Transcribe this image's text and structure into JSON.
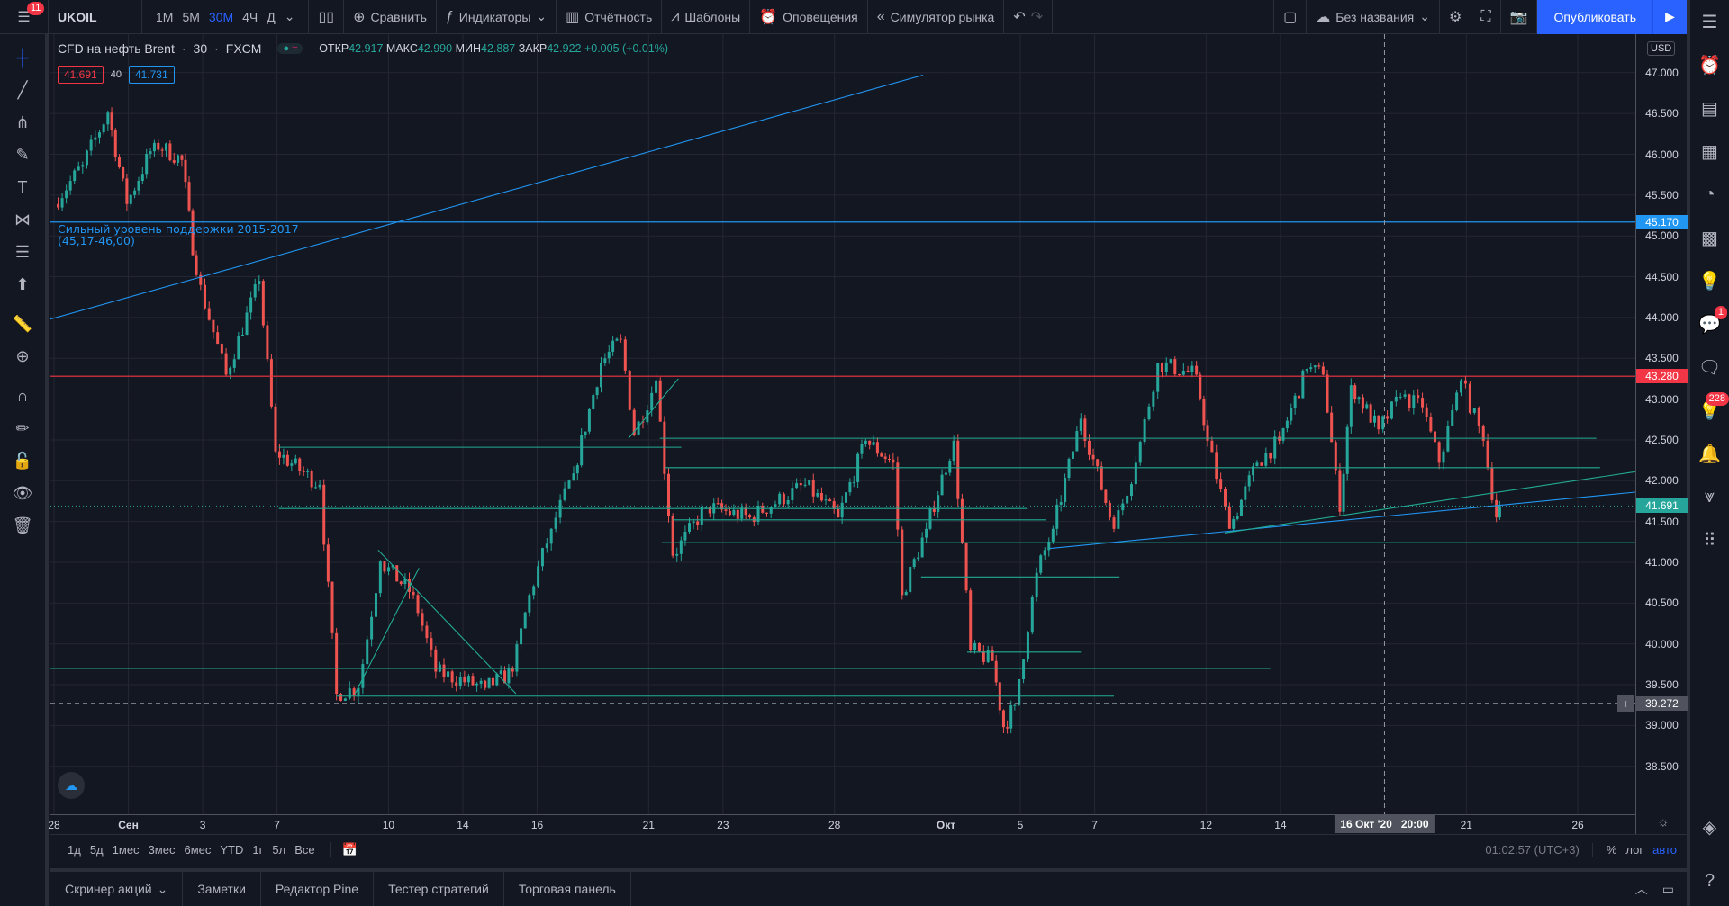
{
  "toolbar": {
    "menu_badge": "11",
    "symbol": "UKOIL",
    "timeframes": [
      "1М",
      "5М",
      "30М",
      "4Ч",
      "Д"
    ],
    "active_timeframe": "30М",
    "compare": "Сравнить",
    "indicators": "Индикаторы",
    "financials": "Отчётность",
    "templates": "Шаблоны",
    "alerts": "Оповещения",
    "replay": "Симулятор рынка",
    "layout_name": "Без названия",
    "publish": "Опубликовать"
  },
  "legend": {
    "title": "CFD на нефть Brent",
    "interval": "30",
    "exchange": "FXCM",
    "open_label": "ОТКР",
    "open": "42.917",
    "high_label": "МАКС",
    "high": "42.990",
    "low_label": "МИН",
    "low": "42.887",
    "close_label": "ЗАКР",
    "close": "42.922",
    "change": "+0.005 (+0.01%)",
    "bid": "41.691",
    "spread": "40",
    "ask": "41.731"
  },
  "currency": "USD",
  "annotation": {
    "line1": "Сильный уровень поддержки 2015-2017",
    "line2": "(45,17-46,00)"
  },
  "colors": {
    "bg": "#131722",
    "grid": "#242733",
    "up": "#26a69a",
    "down": "#ef5350",
    "blue": "#2196f3",
    "red": "#f23645",
    "teal": "#22ab94",
    "accent": "#2962ff"
  },
  "chart_data": {
    "type": "candlestick",
    "x_unit": "trading days from 28 Aug 2020",
    "xlim": [
      -0.1,
      42.55
    ],
    "ylim": [
      38.2,
      47.4
    ],
    "y_ticks": [
      "47.000",
      "46.500",
      "46.000",
      "45.500",
      "45.000",
      "44.500",
      "44.000",
      "43.500",
      "43.000",
      "42.500",
      "42.000",
      "41.500",
      "41.000",
      "40.500",
      "40.000",
      "39.500",
      "39.000",
      "38.500"
    ],
    "x_ticks": [
      {
        "d": 0,
        "label": "28"
      },
      {
        "d": 2,
        "label": "Сен"
      },
      {
        "d": 4,
        "label": "3"
      },
      {
        "d": 6,
        "label": "7"
      },
      {
        "d": 9,
        "label": "10"
      },
      {
        "d": 11,
        "label": "14"
      },
      {
        "d": 13,
        "label": "16"
      },
      {
        "d": 16,
        "label": "21"
      },
      {
        "d": 18,
        "label": "23"
      },
      {
        "d": 21,
        "label": "28"
      },
      {
        "d": 24,
        "label": "Окт"
      },
      {
        "d": 26,
        "label": "5"
      },
      {
        "d": 28,
        "label": "7"
      },
      {
        "d": 31,
        "label": "12"
      },
      {
        "d": 33,
        "label": "14"
      },
      {
        "d": 38,
        "label": "21"
      },
      {
        "d": 41,
        "label": "26"
      }
    ],
    "crosshair": {
      "d": 35.8,
      "date_label": "16 Окт '20",
      "time_label": "20:00",
      "price": "39.272"
    },
    "price_path": [
      [
        0,
        45.39
      ],
      [
        0.77,
        45.87
      ],
      [
        1.45,
        46.51
      ],
      [
        1.96,
        45.39
      ],
      [
        2.7,
        46.14
      ],
      [
        3.44,
        45.93
      ],
      [
        3.83,
        44.52
      ],
      [
        4.63,
        43.3
      ],
      [
        5.52,
        44.45
      ],
      [
        5.96,
        42.36
      ],
      [
        7.15,
        41.95
      ],
      [
        7.6,
        39.39
      ],
      [
        8.19,
        39.46
      ],
      [
        8.78,
        41.01
      ],
      [
        9.67,
        40.6
      ],
      [
        10.27,
        39.66
      ],
      [
        11.6,
        39.46
      ],
      [
        12.34,
        39.66
      ],
      [
        12.79,
        40.6
      ],
      [
        13.38,
        41.41
      ],
      [
        13.98,
        42.09
      ],
      [
        14.72,
        43.44
      ],
      [
        15.25,
        43.73
      ],
      [
        15.61,
        42.56
      ],
      [
        16.2,
        43.23
      ],
      [
        16.65,
        41.08
      ],
      [
        17.54,
        41.68
      ],
      [
        18.72,
        41.55
      ],
      [
        20.21,
        41.95
      ],
      [
        21.1,
        41.55
      ],
      [
        21.84,
        42.49
      ],
      [
        22.58,
        42.22
      ],
      [
        22.82,
        40.6
      ],
      [
        23.47,
        41.41
      ],
      [
        24.21,
        42.49
      ],
      [
        24.66,
        39.93
      ],
      [
        25.25,
        39.79
      ],
      [
        25.55,
        38.98
      ],
      [
        25.85,
        39.25
      ],
      [
        26.44,
        40.87
      ],
      [
        26.88,
        41.41
      ],
      [
        27.63,
        42.76
      ],
      [
        28.52,
        41.41
      ],
      [
        29.11,
        42.22
      ],
      [
        29.7,
        43.44
      ],
      [
        30.74,
        43.3
      ],
      [
        31.04,
        42.49
      ],
      [
        31.63,
        41.41
      ],
      [
        32.37,
        42.22
      ],
      [
        32.97,
        42.49
      ],
      [
        33.71,
        43.37
      ],
      [
        34.15,
        43.3
      ],
      [
        34.6,
        41.62
      ],
      [
        34.9,
        43.17
      ],
      [
        35.64,
        42.63
      ],
      [
        36.23,
        43.03
      ],
      [
        36.82,
        42.9
      ],
      [
        37.27,
        42.22
      ],
      [
        37.86,
        43.23
      ],
      [
        38.46,
        42.49
      ],
      [
        38.81,
        41.55
      ],
      [
        38.9,
        41.69
      ]
    ],
    "horizontal_levels": [
      {
        "price": 45.17,
        "color": "blue",
        "label": "45.170"
      },
      {
        "price": 43.28,
        "color": "red",
        "label": "43.280"
      }
    ],
    "current_price": {
      "price": 41.691,
      "label": "41.691"
    },
    "segments": [
      {
        "from": [
          -0.1,
          43.98
        ],
        "to": [
          23.38,
          46.97
        ],
        "color": "blue"
      },
      {
        "from": [
          6.05,
          42.41
        ],
        "to": [
          16.88,
          42.41
        ],
        "color": "teal"
      },
      {
        "from": [
          16.3,
          42.52
        ],
        "to": [
          41.5,
          42.52
        ],
        "color": "teal"
      },
      {
        "from": [
          16.45,
          42.16
        ],
        "to": [
          41.6,
          42.16
        ],
        "color": "teal"
      },
      {
        "from": [
          6.05,
          41.66
        ],
        "to": [
          26.2,
          41.66
        ],
        "color": "teal"
      },
      {
        "from": [
          16.65,
          41.52
        ],
        "to": [
          26.7,
          41.52
        ],
        "color": "teal"
      },
      {
        "from": [
          16.35,
          41.24
        ],
        "to": [
          42.55,
          41.24
        ],
        "color": "teal"
      },
      {
        "from": [
          23.33,
          40.82
        ],
        "to": [
          28.67,
          40.82
        ],
        "color": "teal"
      },
      {
        "from": [
          24.57,
          39.9
        ],
        "to": [
          27.63,
          39.9
        ],
        "color": "teal"
      },
      {
        "from": [
          -0.1,
          39.7
        ],
        "to": [
          32.73,
          39.7
        ],
        "color": "teal"
      },
      {
        "from": [
          7.6,
          39.36
        ],
        "to": [
          28.52,
          39.36
        ],
        "color": "teal"
      },
      {
        "from": [
          26.8,
          41.17
        ],
        "to": [
          42.55,
          41.86
        ],
        "color": "blue"
      },
      {
        "from": [
          31.5,
          41.36
        ],
        "to": [
          42.55,
          42.11
        ],
        "color": "teal"
      },
      {
        "from": [
          8.72,
          41.15
        ],
        "to": [
          12.43,
          39.39
        ],
        "color": "teal"
      },
      {
        "from": [
          8.1,
          39.39
        ],
        "to": [
          9.82,
          40.93
        ],
        "color": "teal"
      },
      {
        "from": [
          15.46,
          42.52
        ],
        "to": [
          16.8,
          43.25
        ],
        "color": "teal"
      }
    ]
  },
  "time_axis": {
    "clock": "01:02:57 (UTC+3)",
    "percent": "%",
    "log": "лог",
    "auto": "авто"
  },
  "range_buttons": [
    "1д",
    "5д",
    "1мес",
    "3мес",
    "6мес",
    "YTD",
    "1г",
    "5л",
    "Все"
  ],
  "bottom_tabs": [
    "Скринер акций",
    "Заметки",
    "Редактор Pine",
    "Тестер стратегий",
    "Торговая панель"
  ],
  "right_badges": {
    "ideas": "1",
    "streams": "228"
  }
}
